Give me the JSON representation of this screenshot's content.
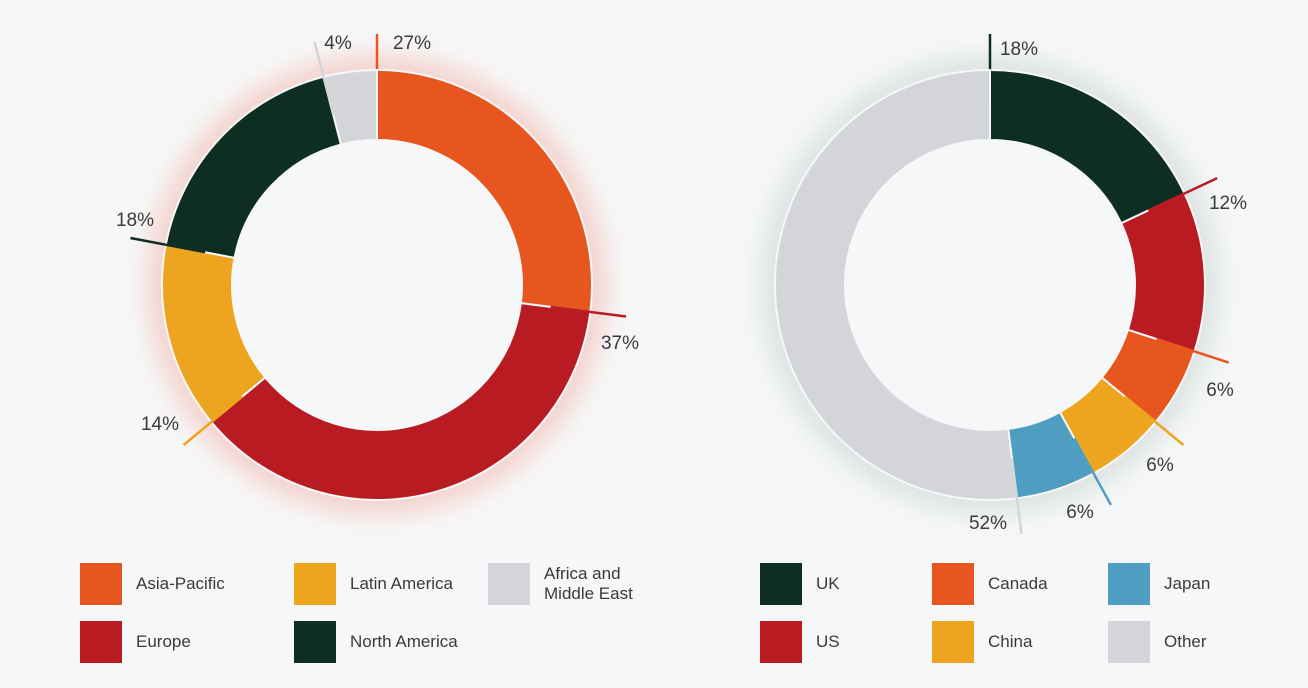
{
  "chart_data": [
    {
      "type": "pie",
      "title": "",
      "categories": [
        "Asia-Pacific",
        "Europe",
        "Latin America",
        "North America",
        "Africa and Middle East"
      ],
      "values": [
        27,
        37,
        14,
        18,
        4
      ],
      "labels": [
        "27%",
        "37%",
        "14%",
        "18%",
        "4%"
      ],
      "colors": [
        "#e8561f",
        "#b81c22",
        "#eda51f",
        "#0d2e21",
        "#d4d5d9"
      ],
      "donut": true,
      "legend": "bottom",
      "legend_order": [
        0,
        2,
        4,
        1,
        3
      ]
    },
    {
      "type": "pie",
      "title": "",
      "categories": [
        "UK",
        "US",
        "Canada",
        "China",
        "Japan",
        "Other"
      ],
      "values": [
        18,
        12,
        6,
        6,
        6,
        52
      ],
      "labels": [
        "18%",
        "12%",
        "6%",
        "6%",
        "6%",
        "52%"
      ],
      "colors": [
        "#0d2e21",
        "#b81c22",
        "#e8561f",
        "#eda51f",
        "#4f9dc0",
        "#d4d5d9"
      ],
      "donut": true,
      "legend": "bottom",
      "legend_order": [
        0,
        2,
        4,
        1,
        3,
        5
      ]
    }
  ]
}
